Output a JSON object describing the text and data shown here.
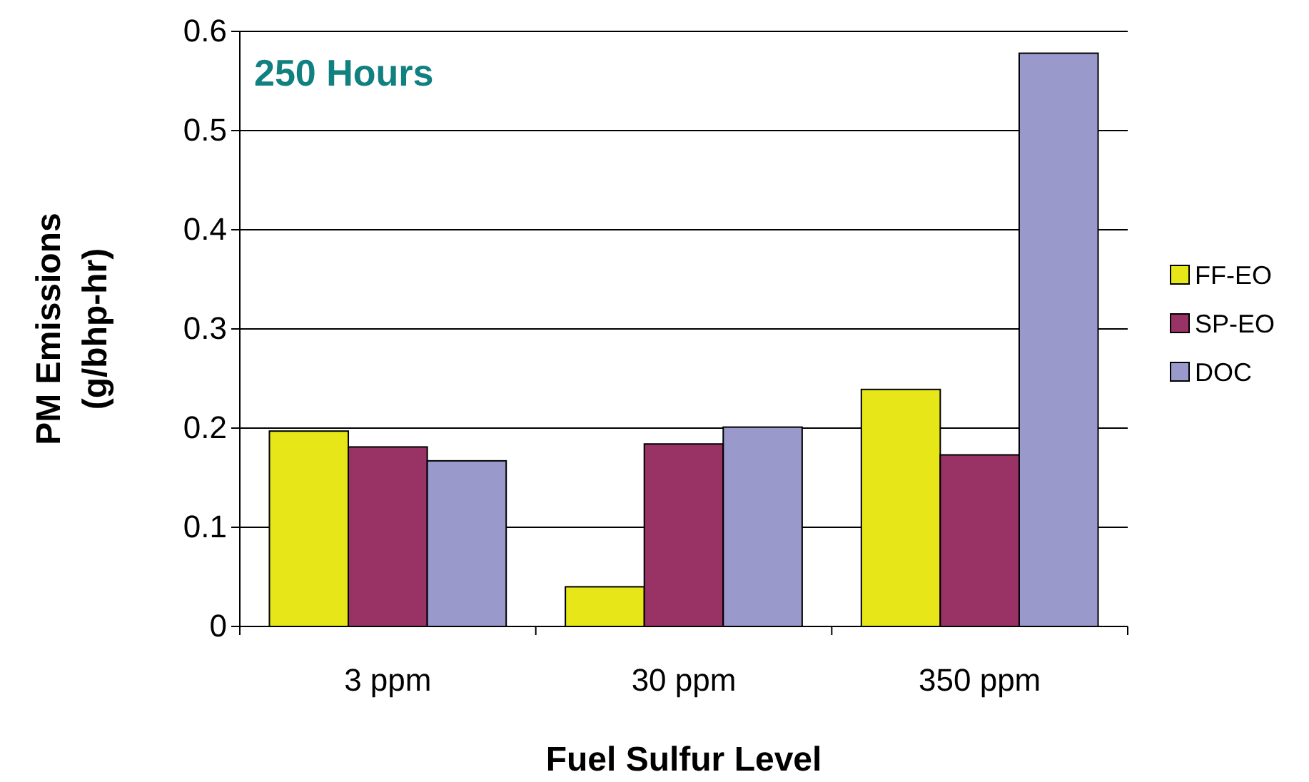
{
  "chart_data": {
    "type": "bar",
    "title": "250 Hours",
    "xlabel": "Fuel Sulfur Level",
    "ylabel": "PM Emissions (g/bhp-hr)",
    "categories": [
      "3 ppm",
      "30 ppm",
      "350 ppm"
    ],
    "series": [
      {
        "name": "FF-EO",
        "color": "#e6e619",
        "values": [
          0.197,
          0.04,
          0.239
        ]
      },
      {
        "name": "SP-EO",
        "color": "#993366",
        "values": [
          0.181,
          0.184,
          0.173
        ]
      },
      {
        "name": "DOC",
        "color": "#9999cc",
        "values": [
          0.167,
          0.201,
          0.578
        ]
      }
    ],
    "ylim": [
      0,
      0.6
    ],
    "yticks": [
      0,
      0.1,
      0.2,
      0.3,
      0.4,
      0.5,
      0.6
    ],
    "grid": "y",
    "legend": "right"
  }
}
